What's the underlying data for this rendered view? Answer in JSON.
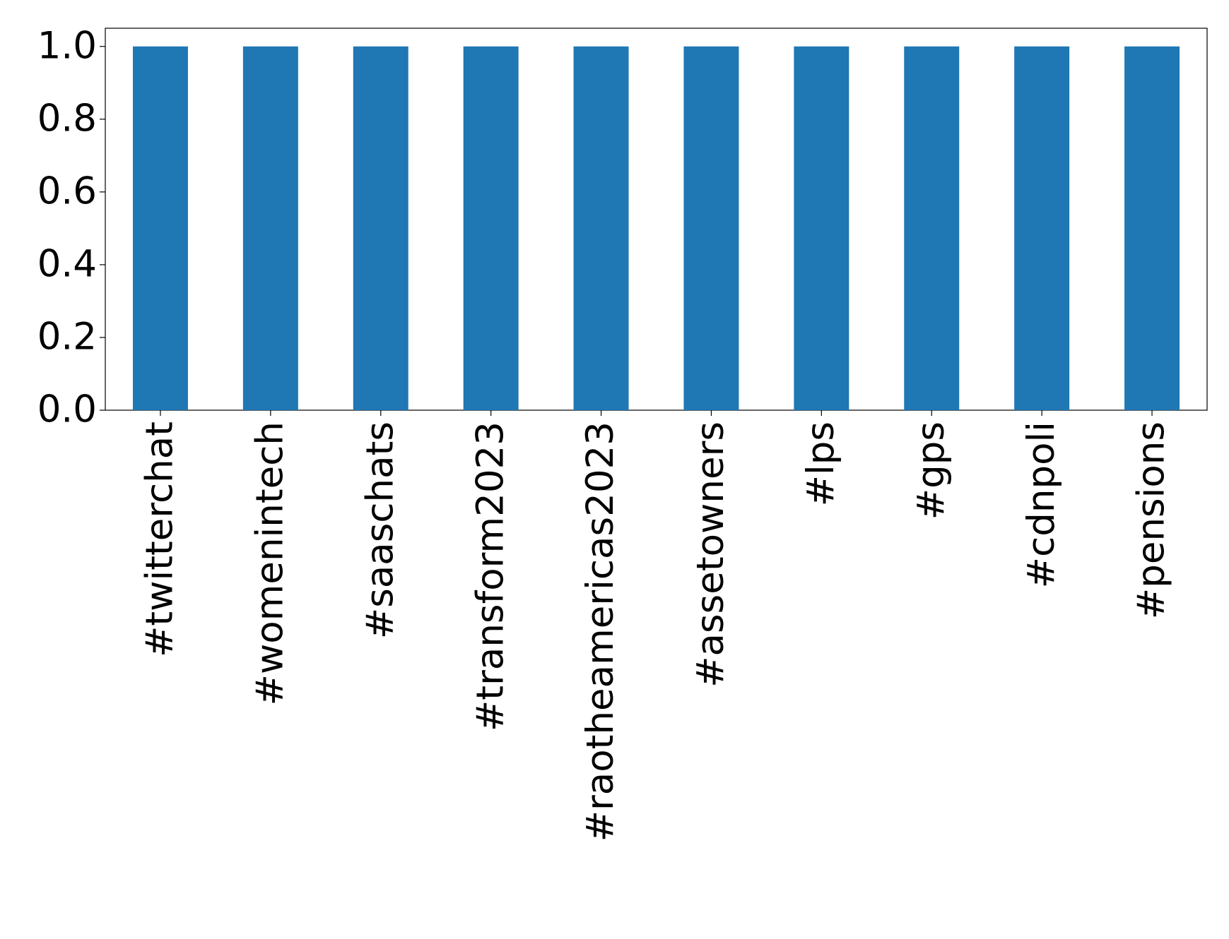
{
  "chart_data": {
    "type": "bar",
    "categories": [
      "#twitterchat",
      "#womenintech",
      "#saaschats",
      "#transform2023",
      "#raotheamericas2023",
      "#assetowners",
      "#lps",
      "#gps",
      "#cdnpoli",
      "#pensions"
    ],
    "values": [
      1,
      1,
      1,
      1,
      1,
      1,
      1,
      1,
      1,
      1
    ],
    "color": "#1f77b4",
    "ylim": [
      0,
      1.05
    ],
    "yticks": [
      {
        "value": 0,
        "label": "0.0"
      },
      {
        "value": 0.2,
        "label": "0.2"
      },
      {
        "value": 0.4,
        "label": "0.4"
      },
      {
        "value": 0.6,
        "label": "0.6"
      },
      {
        "value": 0.8,
        "label": "0.8"
      },
      {
        "value": 1,
        "label": "1.0"
      }
    ],
    "grid": false
  }
}
